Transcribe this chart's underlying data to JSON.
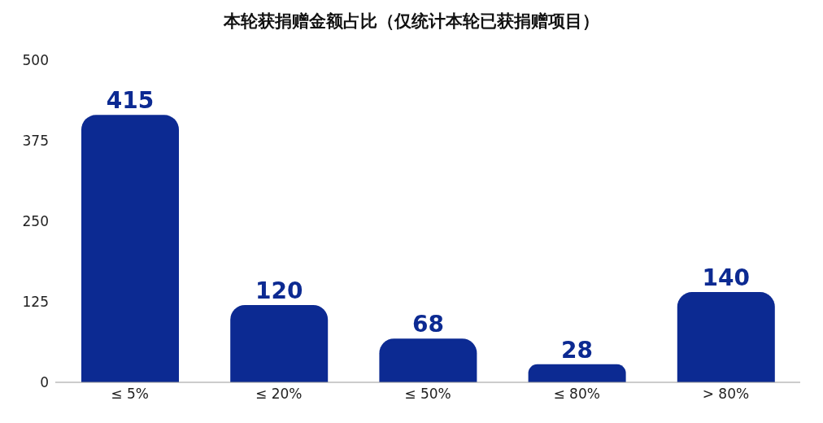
{
  "chart_data": {
    "type": "bar",
    "title": "本轮获捐赠金额占比（仅统计本轮已获捐赠项目）",
    "categories": [
      "≤ 5%",
      "≤ 20%",
      "≤ 50%",
      "≤ 80%",
      "> 80%"
    ],
    "values": [
      415,
      120,
      68,
      28,
      140
    ],
    "color": "#0c2a92",
    "ylim": [
      0,
      500
    ],
    "yticks": [
      0,
      125,
      250,
      375,
      500
    ],
    "data_labels": true
  }
}
